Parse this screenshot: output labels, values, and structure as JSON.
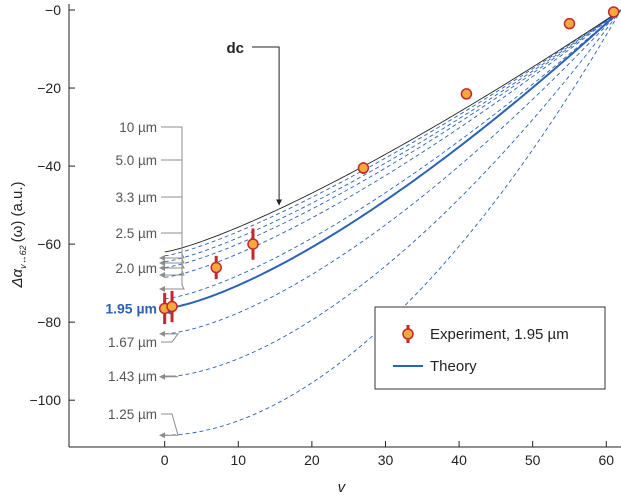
{
  "chart_data": {
    "type": "line",
    "title": "",
    "xlabel": "v",
    "ylabel_main": "Δα",
    "ylabel_sub": "v↔62",
    "ylabel_rest": "(ω) (a.u.)",
    "xlim": [
      -13,
      62
    ],
    "ylim": [
      -112,
      0
    ],
    "xticks": [
      0,
      10,
      20,
      30,
      40,
      50,
      60
    ],
    "yticks": [
      0,
      -20,
      -40,
      -60,
      -80,
      -100
    ],
    "ytick_labels": [
      "−0",
      "−20",
      "−40",
      "−60",
      "−80",
      "−100"
    ],
    "grid": false,
    "dc_label": "dc",
    "dc_curve": {
      "start": -62,
      "p": 1.25
    },
    "highlight_curve": {
      "label": "1.95 µm",
      "start": -76.5,
      "p": 1.4
    },
    "wavelength_curves": [
      {
        "label": "10 µm",
        "start": -63,
        "p": 1.27
      },
      {
        "label": "5.0 µm",
        "start": -64.5,
        "p": 1.29
      },
      {
        "label": "3.3 µm",
        "start": -66,
        "p": 1.31
      },
      {
        "label": "2.5 µm",
        "start": -68.5,
        "p": 1.33
      },
      {
        "label": "2.0 µm",
        "start": -74,
        "p": 1.38
      },
      {
        "label": "1.67 µm",
        "start": -83,
        "p": 1.5
      },
      {
        "label": "1.43 µm",
        "start": -94,
        "p": 1.65
      },
      {
        "label": "1.25 µm",
        "start": -109,
        "p": 1.85
      }
    ],
    "experiment": [
      {
        "x": 0,
        "y": -76.5,
        "err": 4
      },
      {
        "x": 1,
        "y": -76,
        "err": 4
      },
      {
        "x": 7,
        "y": -66,
        "err": 3
      },
      {
        "x": 12,
        "y": -60,
        "err": 4
      },
      {
        "x": 27,
        "y": -40.5,
        "err": 1.5
      },
      {
        "x": 41,
        "y": -21.5,
        "err": 1
      },
      {
        "x": 55,
        "y": -3.5,
        "err": 0.8
      },
      {
        "x": 61,
        "y": -0.5,
        "err": 0.8
      }
    ],
    "legend": {
      "placement": "bottom-right",
      "experiment_label": "Experiment, 1.95 µm",
      "theory_label": "Theory"
    },
    "colors": {
      "theory": "#2a62b8",
      "dc": "#222222",
      "marker_fill": "#f5a93c",
      "marker_edge": "#c0282d",
      "callout": "#8c8c8c",
      "axis": "#222222"
    }
  }
}
